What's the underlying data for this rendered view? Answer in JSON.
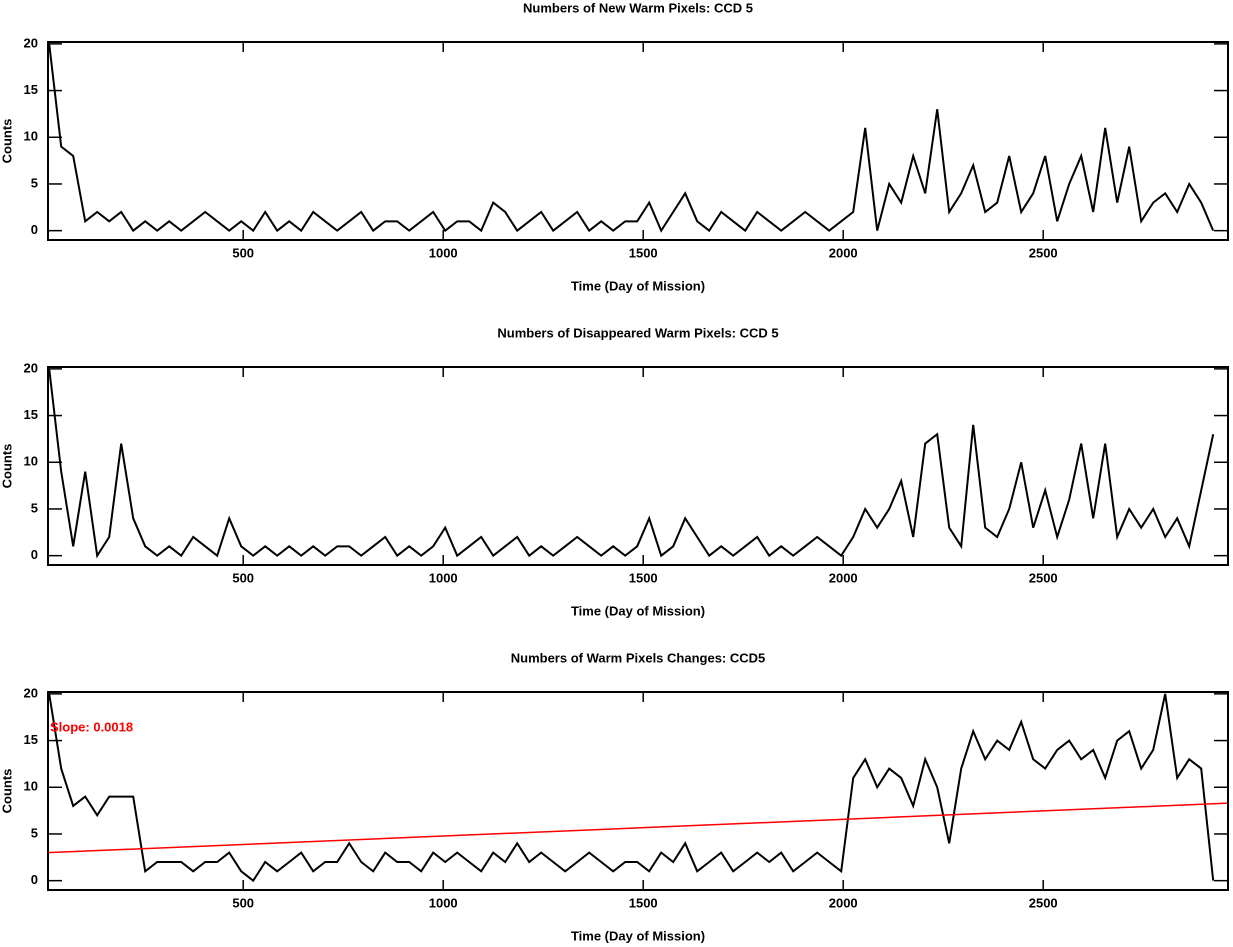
{
  "chart_data": [
    {
      "type": "line",
      "title": "Numbers of New Warm Pixels: CCD 5",
      "xlabel": "Time (Day of Mission)",
      "ylabel": "Counts",
      "xlim": [
        12,
        2962
      ],
      "ylim": [
        -1,
        20.2
      ],
      "xticks": [
        500,
        1000,
        1500,
        2000,
        2500
      ],
      "yticks": [
        0,
        5,
        10,
        15,
        20
      ],
      "color": "#000000",
      "x": [
        15,
        45,
        75,
        105,
        135,
        165,
        195,
        225,
        255,
        285,
        315,
        345,
        375,
        405,
        435,
        465,
        495,
        525,
        555,
        585,
        615,
        645,
        675,
        705,
        735,
        765,
        795,
        825,
        855,
        885,
        915,
        945,
        975,
        1005,
        1035,
        1065,
        1095,
        1125,
        1155,
        1185,
        1215,
        1245,
        1275,
        1305,
        1335,
        1365,
        1395,
        1425,
        1455,
        1485,
        1515,
        1545,
        1575,
        1605,
        1635,
        1665,
        1695,
        1725,
        1755,
        1785,
        1815,
        1845,
        1875,
        1905,
        1935,
        1965,
        1995,
        2025,
        2055,
        2085,
        2115,
        2145,
        2175,
        2205,
        2235,
        2265,
        2295,
        2325,
        2355,
        2385,
        2415,
        2445,
        2475,
        2505,
        2535,
        2565,
        2595,
        2625,
        2655,
        2685,
        2715,
        2745,
        2775,
        2805,
        2835,
        2865,
        2895,
        2925
      ],
      "values": [
        20,
        9,
        8,
        1,
        2,
        1,
        2,
        0,
        1,
        0,
        1,
        0,
        1,
        2,
        1,
        0,
        1,
        0,
        2,
        0,
        1,
        0,
        2,
        1,
        0,
        1,
        2,
        0,
        1,
        1,
        0,
        1,
        2,
        0,
        1,
        1,
        0,
        3,
        2,
        0,
        1,
        2,
        0,
        1,
        2,
        0,
        1,
        0,
        1,
        1,
        3,
        0,
        2,
        4,
        1,
        0,
        2,
        1,
        0,
        2,
        1,
        0,
        1,
        2,
        1,
        0,
        1,
        2,
        11,
        0,
        5,
        3,
        8,
        4,
        13,
        2,
        4,
        7,
        2,
        3,
        8,
        2,
        4,
        8,
        1,
        5,
        8,
        2,
        11,
        3,
        9,
        1,
        3,
        4,
        2,
        5,
        3,
        0
      ]
    },
    {
      "type": "line",
      "title": "Numbers of Disappeared Warm Pixels: CCD 5",
      "xlabel": "Time (Day of Mission)",
      "ylabel": "Counts",
      "xlim": [
        12,
        2962
      ],
      "ylim": [
        -1,
        20.2
      ],
      "xticks": [
        500,
        1000,
        1500,
        2000,
        2500
      ],
      "yticks": [
        0,
        5,
        10,
        15,
        20
      ],
      "color": "#000000",
      "x": [
        15,
        45,
        75,
        105,
        135,
        165,
        195,
        225,
        255,
        285,
        315,
        345,
        375,
        405,
        435,
        465,
        495,
        525,
        555,
        585,
        615,
        645,
        675,
        705,
        735,
        765,
        795,
        825,
        855,
        885,
        915,
        945,
        975,
        1005,
        1035,
        1065,
        1095,
        1125,
        1155,
        1185,
        1215,
        1245,
        1275,
        1305,
        1335,
        1365,
        1395,
        1425,
        1455,
        1485,
        1515,
        1545,
        1575,
        1605,
        1635,
        1665,
        1695,
        1725,
        1755,
        1785,
        1815,
        1845,
        1875,
        1905,
        1935,
        1965,
        1995,
        2025,
        2055,
        2085,
        2115,
        2145,
        2175,
        2205,
        2235,
        2265,
        2295,
        2325,
        2355,
        2385,
        2415,
        2445,
        2475,
        2505,
        2535,
        2565,
        2595,
        2625,
        2655,
        2685,
        2715,
        2745,
        2775,
        2805,
        2835,
        2865,
        2895,
        2925
      ],
      "values": [
        20,
        9,
        1,
        9,
        0,
        2,
        12,
        4,
        1,
        0,
        1,
        0,
        2,
        1,
        0,
        4,
        1,
        0,
        1,
        0,
        1,
        0,
        1,
        0,
        1,
        1,
        0,
        1,
        2,
        0,
        1,
        0,
        1,
        3,
        0,
        1,
        2,
        0,
        1,
        2,
        0,
        1,
        0,
        1,
        2,
        1,
        0,
        1,
        0,
        1,
        4,
        0,
        1,
        4,
        2,
        0,
        1,
        0,
        1,
        2,
        0,
        1,
        0,
        1,
        2,
        1,
        0,
        2,
        5,
        3,
        5,
        8,
        2,
        12,
        13,
        3,
        1,
        14,
        3,
        2,
        5,
        10,
        3,
        7,
        2,
        6,
        12,
        4,
        12,
        2,
        5,
        3,
        5,
        2,
        4,
        1,
        7,
        13
      ]
    },
    {
      "type": "line",
      "title": "Numbers of Warm Pixels Changes: CCD5",
      "xlabel": "Time (Day of Mission)",
      "ylabel": "Counts",
      "xlim": [
        12,
        2962
      ],
      "ylim": [
        -1,
        20.2
      ],
      "xticks": [
        500,
        1000,
        1500,
        2000,
        2500
      ],
      "yticks": [
        0,
        5,
        10,
        15,
        20
      ],
      "color": "#000000",
      "x": [
        15,
        45,
        75,
        105,
        135,
        165,
        195,
        225,
        255,
        285,
        315,
        345,
        375,
        405,
        435,
        465,
        495,
        525,
        555,
        585,
        615,
        645,
        675,
        705,
        735,
        765,
        795,
        825,
        855,
        885,
        915,
        945,
        975,
        1005,
        1035,
        1065,
        1095,
        1125,
        1155,
        1185,
        1215,
        1245,
        1275,
        1305,
        1335,
        1365,
        1395,
        1425,
        1455,
        1485,
        1515,
        1545,
        1575,
        1605,
        1635,
        1665,
        1695,
        1725,
        1755,
        1785,
        1815,
        1845,
        1875,
        1905,
        1935,
        1965,
        1995,
        2025,
        2055,
        2085,
        2115,
        2145,
        2175,
        2205,
        2235,
        2265,
        2295,
        2325,
        2355,
        2385,
        2415,
        2445,
        2475,
        2505,
        2535,
        2565,
        2595,
        2625,
        2655,
        2685,
        2715,
        2745,
        2775,
        2805,
        2835,
        2865,
        2895,
        2925
      ],
      "values": [
        20,
        12,
        8,
        9,
        7,
        9,
        9,
        9,
        1,
        2,
        2,
        2,
        1,
        2,
        2,
        3,
        1,
        0,
        2,
        1,
        2,
        3,
        1,
        2,
        2,
        4,
        2,
        1,
        3,
        2,
        2,
        1,
        3,
        2,
        3,
        2,
        1,
        3,
        2,
        4,
        2,
        3,
        2,
        1,
        2,
        3,
        2,
        1,
        2,
        2,
        1,
        3,
        2,
        4,
        1,
        2,
        3,
        1,
        2,
        3,
        2,
        3,
        1,
        2,
        3,
        2,
        1,
        11,
        13,
        10,
        12,
        11,
        8,
        13,
        10,
        4,
        12,
        16,
        13,
        15,
        14,
        17,
        13,
        12,
        14,
        15,
        13,
        14,
        11,
        15,
        16,
        12,
        14,
        20,
        11,
        13,
        12,
        0
      ],
      "fit": {
        "x": [
          12,
          2962
        ],
        "values": [
          3,
          8.3
        ],
        "color": "#ff0000"
      },
      "annotation": {
        "text": "Slope: 0.0018",
        "color": "#ff0000"
      }
    }
  ]
}
